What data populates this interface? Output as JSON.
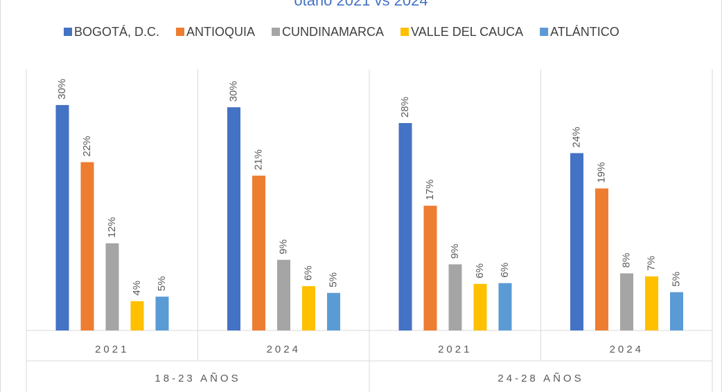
{
  "chart_data": {
    "type": "bar",
    "title": "otario 2021 vs 2024",
    "categories": [
      "2021",
      "2024",
      "2021",
      "2024"
    ],
    "groups": [
      "18-23 AÑOS",
      "24-28 AÑOS"
    ],
    "series": [
      {
        "name": "BOGOTÁ, D.C.",
        "color": "#4472c4",
        "values": [
          30.0,
          29.7,
          27.6,
          23.6
        ],
        "value_labels": [
          "30%",
          "30%",
          "28%",
          "24%"
        ]
      },
      {
        "name": "ANTIOQUIA",
        "color": "#ed7d31",
        "values": [
          22.4,
          20.6,
          16.6,
          18.9
        ],
        "value_labels": [
          "22%",
          "21%",
          "17%",
          "19%"
        ]
      },
      {
        "name": "CUNDINAMARCA",
        "color": "#a5a5a5",
        "values": [
          11.6,
          9.4,
          8.8,
          7.6
        ],
        "value_labels": [
          "12%",
          "9%",
          "9%",
          "8%"
        ]
      },
      {
        "name": "VALLE DEL CAUCA",
        "color": "#ffc000",
        "values": [
          3.9,
          5.9,
          6.2,
          7.2
        ],
        "value_labels": [
          "4%",
          "6%",
          "6%",
          "7%"
        ]
      },
      {
        "name": "ATLÁNTICO",
        "color": "#5b9bd5",
        "values": [
          4.5,
          5.0,
          6.3,
          5.1
        ],
        "value_labels": [
          "5%",
          "5%",
          "6%",
          "5%"
        ]
      }
    ],
    "legend": "top"
  }
}
